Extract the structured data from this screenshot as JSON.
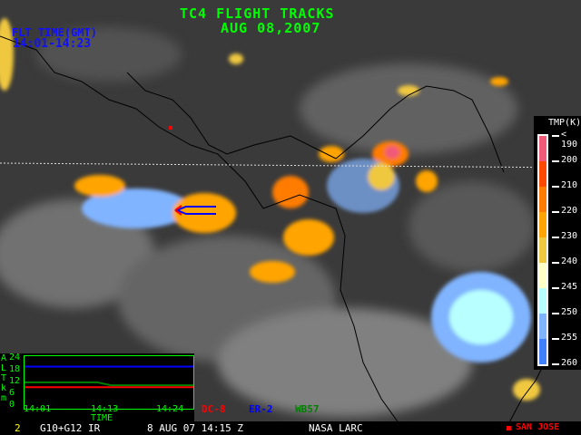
{
  "header": {
    "title": "TC4 FLIGHT TRACKS",
    "date": "AUG 08,2007"
  },
  "flight_time": {
    "label": "FLT TIME(GMT)",
    "range": "14:01-14:23"
  },
  "legend": {
    "title": "TMP(K)",
    "labels": [
      "< 190",
      "200",
      "210",
      "220",
      "230",
      "240",
      "245",
      "250",
      "255",
      "260"
    ],
    "colors": [
      "#f05a78",
      "#ff4800",
      "#ff7c00",
      "#ffa400",
      "#f0c840",
      "#ffffc8",
      "#b8ffff",
      "#80b4ff",
      "#4080ff"
    ]
  },
  "altitude_plot": {
    "ylabel_letters": [
      "A",
      "L",
      "T",
      "k",
      "m"
    ],
    "yticks": [
      "24",
      "18",
      "12",
      "6",
      "0"
    ],
    "xticks": [
      "14:01",
      "14:13",
      "14:24"
    ],
    "xlabel": "TIME",
    "series_colors": {
      "DC-8": "#ff0000",
      "ER-2": "#0000ff",
      "WB57": "#008000"
    },
    "altitudes_km": {
      "ER-2": 21,
      "WB57_start": 13,
      "WB57_end": 11.5,
      "DC-8": 10.5
    }
  },
  "aircraft": [
    {
      "name": "DC-8",
      "color": "#ff0000"
    },
    {
      "name": "ER-2",
      "color": "#0000ff"
    },
    {
      "name": "WB57",
      "color": "#008000"
    }
  ],
  "status_bar": {
    "frame": "2",
    "satellite": "G10+G12 IR",
    "datetime": "8 AUG 07 14:15 Z",
    "source": "NASA LARC",
    "marker_label": "SAN JOSE",
    "marker_color": "#ff0000"
  }
}
